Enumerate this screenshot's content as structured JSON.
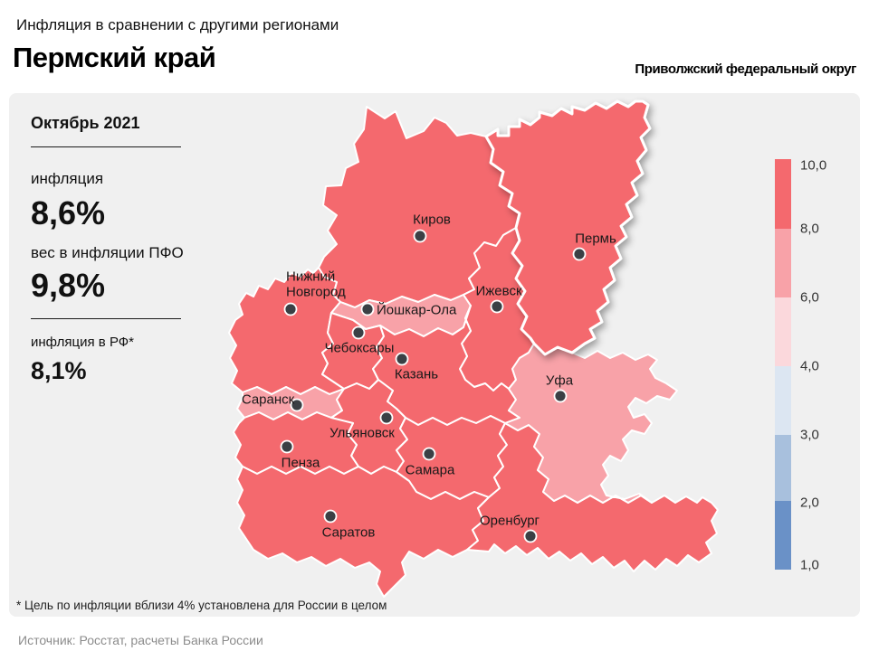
{
  "header": {
    "subtitle": "Инфляция в сравнении с другими регионами",
    "title": "Пермский край",
    "district": "Приволжский федеральный округ"
  },
  "info_panel": {
    "period": "Октябрь 2021",
    "metrics": [
      {
        "label": "инфляция",
        "value": "8,6%"
      },
      {
        "label": "вес в инфляции ПФО",
        "value": "9,8%"
      },
      {
        "label": "инфляция в РФ*",
        "value": "8,1%"
      }
    ]
  },
  "legend": {
    "tick_labels": [
      "10,0",
      "8,0",
      "6,0",
      "4,0",
      "3,0",
      "2,0",
      "1,0"
    ],
    "segment_colors": [
      "#f4696e",
      "#f8a2a8",
      "#fbd8dc",
      "#dce6f2",
      "#a8c0dd",
      "#6a91c7"
    ]
  },
  "map": {
    "panel_background": "#f0f0f0",
    "region_border_color": "#ffffff",
    "city_dot_color": "#3b4045",
    "highlighted_region_city": "Пермь",
    "regions": [
      {
        "city": "Киров",
        "fill": "#f4696e",
        "value_band": "8,0–10,0"
      },
      {
        "city": "Нижний Новгород",
        "fill": "#f4696e",
        "value_band": "8,0–10,0"
      },
      {
        "city": "Йошкар-Ола",
        "fill": "#f8a2a8",
        "value_band": "6,0–8,0"
      },
      {
        "city": "Ижевск",
        "fill": "#f4696e",
        "value_band": "8,0–10,0"
      },
      {
        "city": "Чебоксары",
        "fill": "#f4696e",
        "value_band": "8,0–10,0"
      },
      {
        "city": "Казань",
        "fill": "#f4696e",
        "value_band": "8,0–10,0"
      },
      {
        "city": "Саранск",
        "fill": "#f8a2a8",
        "value_band": "6,0–8,0"
      },
      {
        "city": "Ульяновск",
        "fill": "#f4696e",
        "value_band": "8,0–10,0"
      },
      {
        "city": "Пенза",
        "fill": "#f4696e",
        "value_band": "8,0–10,0"
      },
      {
        "city": "Самара",
        "fill": "#f4696e",
        "value_band": "8,0–10,0"
      },
      {
        "city": "Саратов",
        "fill": "#f4696e",
        "value_band": "8,0–10,0"
      },
      {
        "city": "Оренбург",
        "fill": "#f4696e",
        "value_band": "8,0–10,0"
      },
      {
        "city": "Уфа",
        "fill": "#f8a2a8",
        "value_band": "6,0–8,0"
      },
      {
        "city": "Пермь",
        "fill": "#f4696e",
        "value_band": "8,0–10,0"
      }
    ]
  },
  "footnote": "* Цель по инфляции вблизи 4% установлена для России в целом",
  "source": "Источник: Росстат, расчеты Банка России"
}
